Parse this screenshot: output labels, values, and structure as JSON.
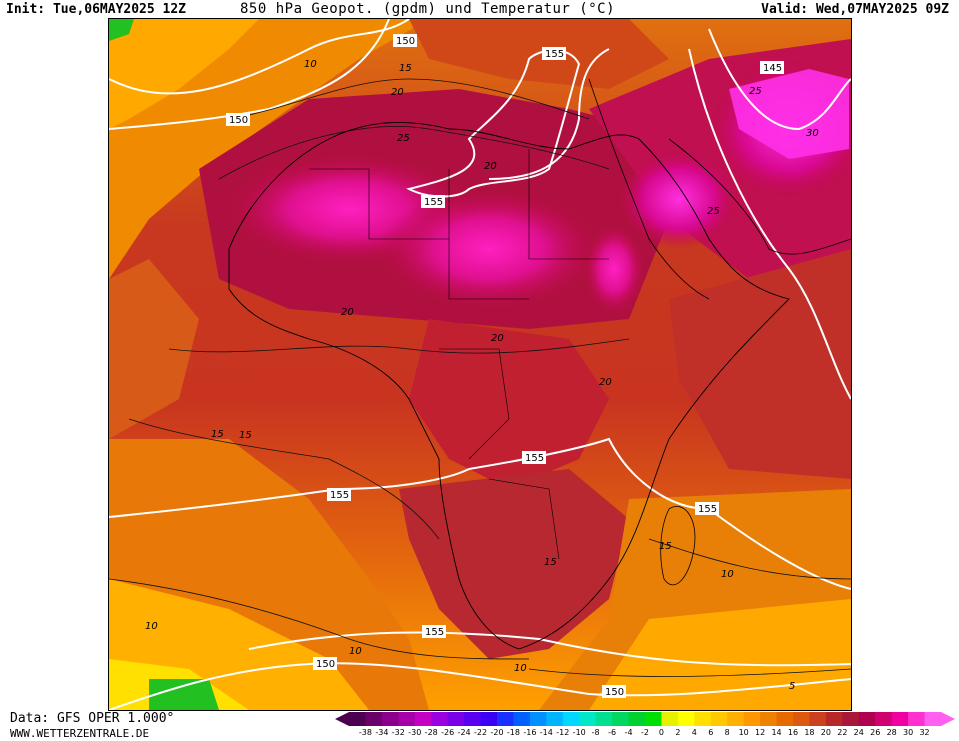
{
  "header": {
    "init": "Init: Tue,06MAY2025 12Z",
    "title": "850 hPa Geopot. (gpdm) und Temperatur (°C)",
    "valid": "Valid: Wed,07MAY2025 09Z"
  },
  "footer": {
    "data_source": "Data: GFS OPER 1.000°",
    "website": "WWW.WETTERZENTRALE.DE"
  },
  "map": {
    "region": "Africa",
    "geopotential_labels": [
      "150",
      "155",
      "150",
      "155",
      "145",
      "155",
      "155",
      "155",
      "150",
      "155",
      "150"
    ],
    "temperature_labels": [
      "10",
      "15",
      "20",
      "25",
      "30",
      "25",
      "25",
      "20",
      "20",
      "20",
      "20",
      "15",
      "15",
      "15",
      "15",
      "10",
      "10",
      "10",
      "10",
      "5"
    ]
  },
  "legend": {
    "labels": [
      "-38",
      "-34",
      "-32",
      "-30",
      "-28",
      "-26",
      "-24",
      "-22",
      "-20",
      "-18",
      "-16",
      "-14",
      "-12",
      "-10",
      "-8",
      "-6",
      "-4",
      "-2",
      "0",
      "2",
      "4",
      "6",
      "8",
      "10",
      "12",
      "14",
      "16",
      "18",
      "20",
      "22",
      "24",
      "26",
      "28",
      "30",
      "32"
    ],
    "colors": [
      "#4b0050",
      "#6b006b",
      "#8a008a",
      "#a800a8",
      "#c400c4",
      "#9b00e0",
      "#7a00e8",
      "#5a00f0",
      "#3a00f5",
      "#1a30ff",
      "#0060ff",
      "#0090ff",
      "#00b4ff",
      "#00d8ff",
      "#00e8c8",
      "#00e090",
      "#00d860",
      "#00d030",
      "#00e000",
      "#e6f000",
      "#ffff00",
      "#ffe000",
      "#ffc800",
      "#ffb000",
      "#ff9800",
      "#f08000",
      "#e66a00",
      "#dc5a10",
      "#cc4020",
      "#b82828",
      "#a81838",
      "#b00050",
      "#d00070",
      "#f000a0",
      "#ff30d0",
      "#ff60f0"
    ]
  }
}
